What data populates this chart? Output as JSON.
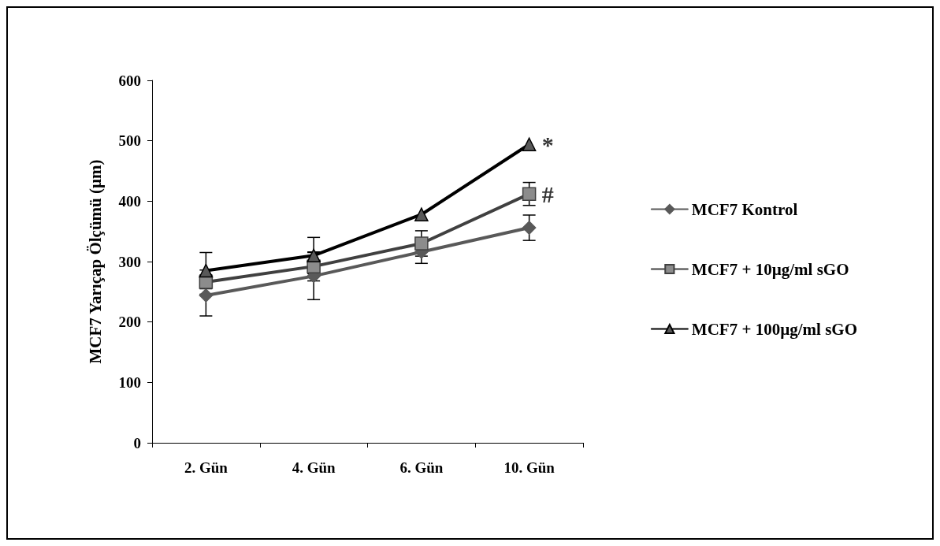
{
  "chart_data": {
    "type": "line",
    "ylabel": "MCF7 Yarıçap Ölçümü (µm)",
    "categories": [
      "2. Gün",
      "4. Gün",
      "6. Gün",
      "10. Gün"
    ],
    "series": [
      {
        "name": "MCF7 Kontrol",
        "color": "#595959",
        "marker": "diamond",
        "values": [
          244,
          276,
          316,
          356
        ],
        "errors": [
          34,
          39,
          19,
          21
        ]
      },
      {
        "name": "MCF7 + 10µg/ml sGO",
        "color": "#404040",
        "marker": "square",
        "values": [
          266,
          292,
          330,
          412
        ],
        "errors": [
          20,
          24,
          21,
          19
        ]
      },
      {
        "name": "MCF7 + 100µg/ml sGO",
        "color": "#000000",
        "marker": "triangle",
        "values": [
          285,
          310,
          378,
          494
        ],
        "errors": [
          30,
          30,
          null,
          null
        ]
      }
    ],
    "annotations": [
      {
        "text": "*",
        "x": "10. Gün",
        "y": 494
      },
      {
        "text": "#",
        "x": "10. Gün",
        "y": 412
      }
    ],
    "ylim": [
      0,
      600
    ],
    "yticks": [
      0,
      100,
      200,
      300,
      400,
      500,
      600
    ],
    "grid": false,
    "legend": "right"
  }
}
